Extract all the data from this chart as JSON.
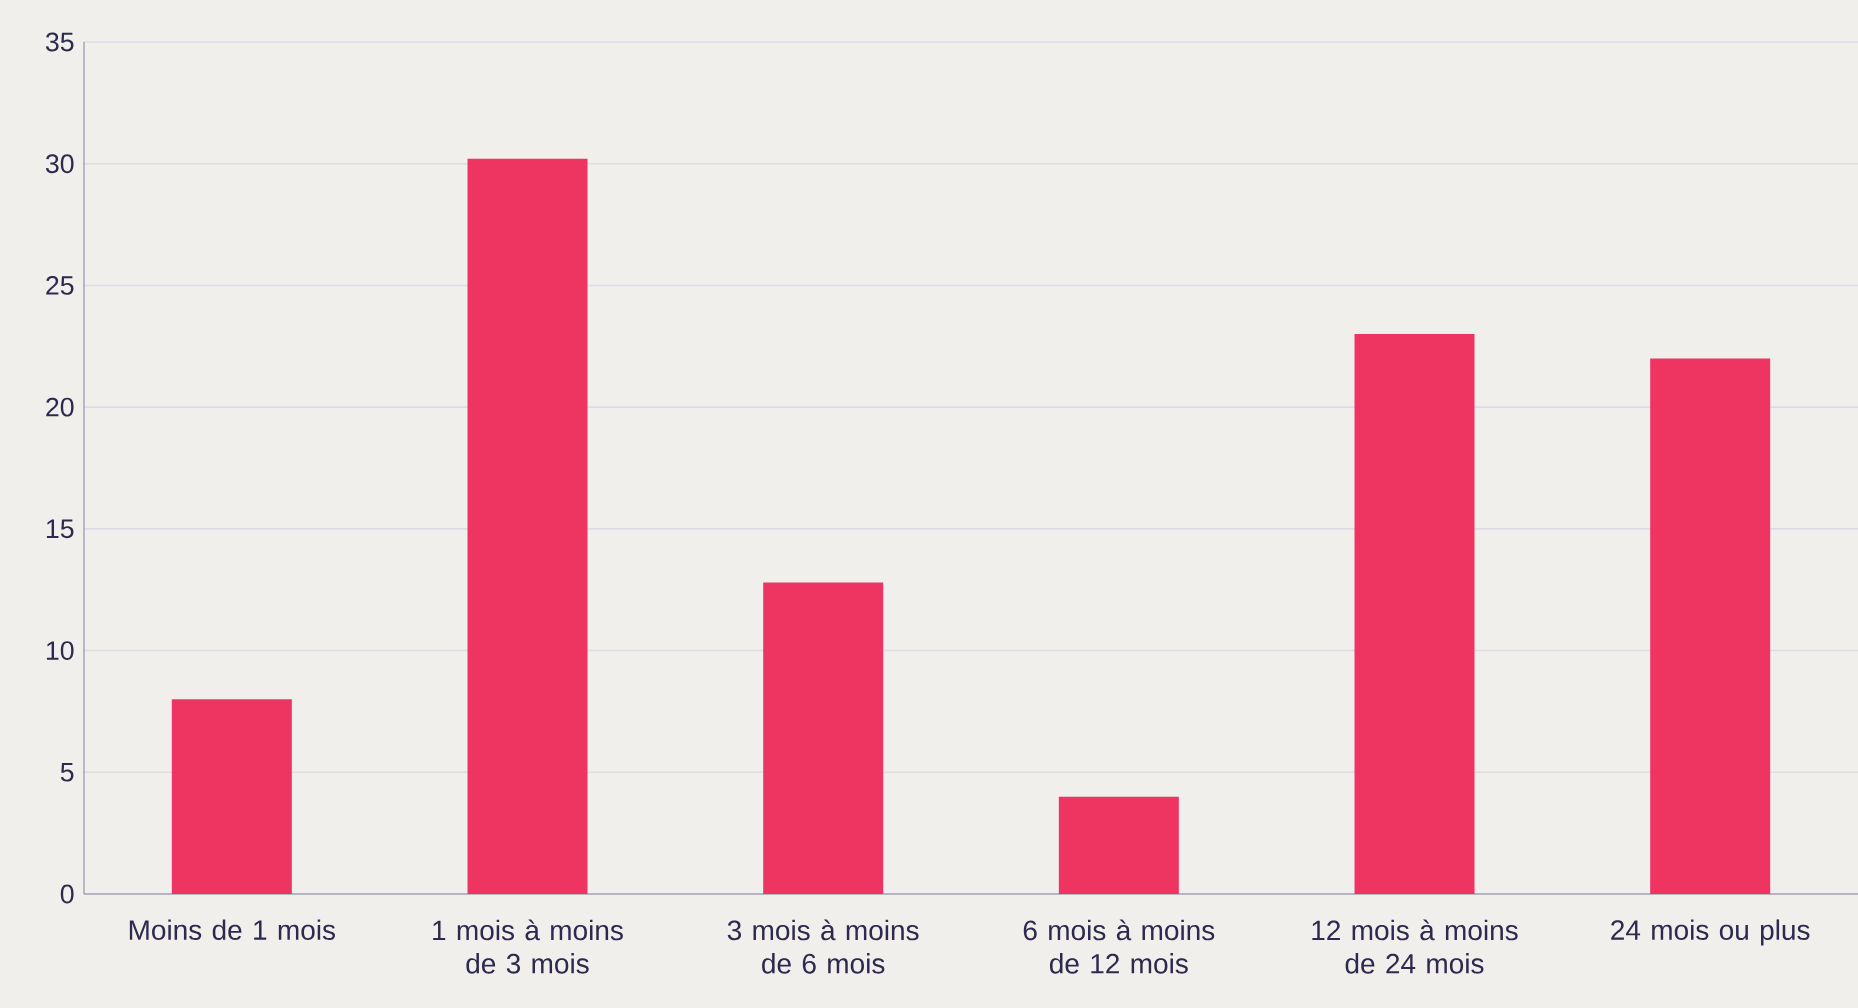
{
  "chart_data": {
    "type": "bar",
    "categories": [
      "Moins de 1 mois",
      "1 mois à moins de 3 mois",
      "3 mois à moins de 6 mois",
      "6 mois à moins de 12 mois",
      "12 mois à moins de 24 mois",
      "24 mois ou plus"
    ],
    "values": [
      8,
      30.2,
      12.8,
      4,
      23,
      22
    ],
    "color": "#ee3562",
    "ylim": [
      0,
      35
    ],
    "yticks": [
      0,
      5,
      10,
      15,
      20,
      25,
      30,
      35
    ],
    "grid": "y"
  }
}
